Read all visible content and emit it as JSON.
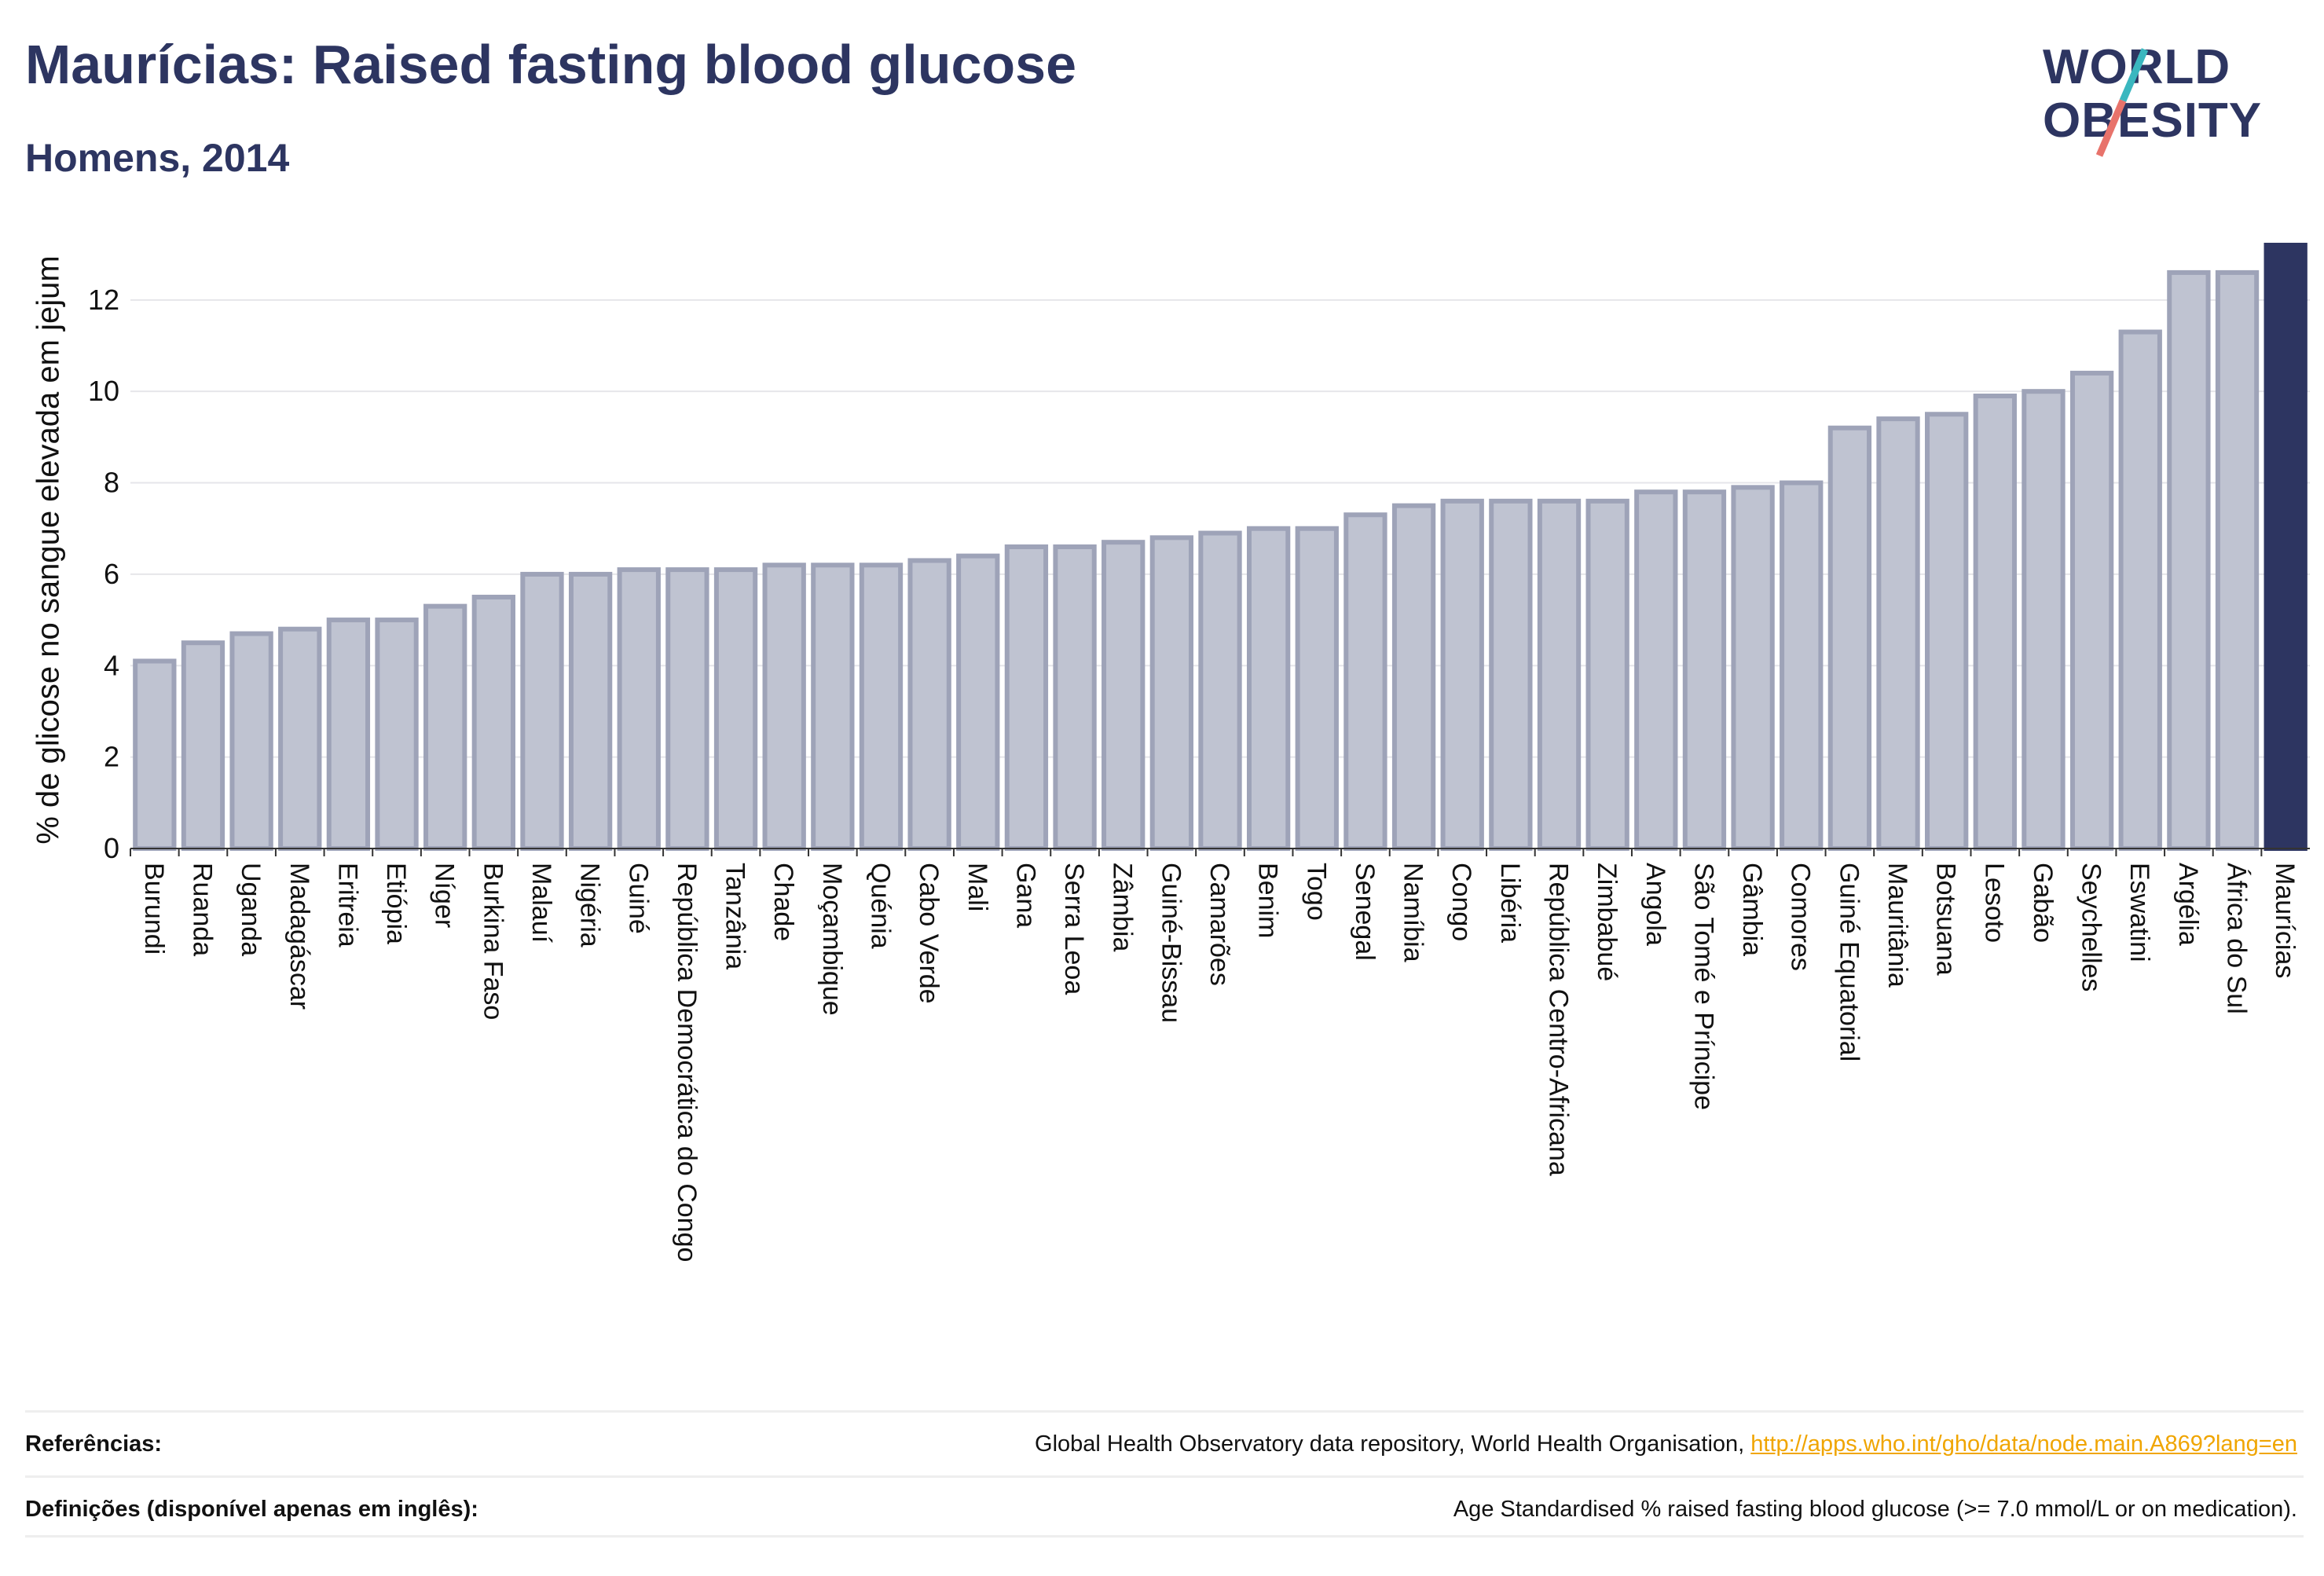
{
  "header": {
    "title": "Maurícias: Raised fasting blood glucose",
    "subtitle": "Homens, 2014"
  },
  "logo": {
    "line1": "WORLD",
    "line2": "OBESITY",
    "accent_color": "#3ab7bf",
    "accent_color_2": "#e8736b"
  },
  "chart_data": {
    "type": "bar",
    "ylabel": "% de glicose no sangue elevada em jejum",
    "xlabel": "",
    "ylim": [
      0,
      13.2
    ],
    "yticks": [
      0,
      2,
      4,
      6,
      8,
      10,
      12
    ],
    "grid": true,
    "highlight": "Maurícias",
    "colors": {
      "bar": "#bfc3d1",
      "bar_edge": "#9ea3b8",
      "highlight": "#2d3561"
    },
    "categories": [
      "Burundi",
      "Ruanda",
      "Uganda",
      "Madagáscar",
      "Eritreia",
      "Etiópia",
      "Níger",
      "Burkina Faso",
      "Malauí",
      "Nigéria",
      "Guiné",
      "República Democrática do Congo",
      "Tanzânia",
      "Chade",
      "Moçambique",
      "Quénia",
      "Cabo Verde",
      "Mali",
      "Gana",
      "Serra Leoa",
      "Zâmbia",
      "Guiné-Bissau",
      "Camarões",
      "Benim",
      "Togo",
      "Senegal",
      "Namíbia",
      "Congo",
      "Libéria",
      "República Centro-Africana",
      "Zimbabué",
      "Angola",
      "São Tomé e Príncipe",
      "Gâmbia",
      "Comores",
      "Guiné Equatorial",
      "Mauritânia",
      "Botsuana",
      "Lesoto",
      "Gabão",
      "Seychelles",
      "Eswatini",
      "Argélia",
      "África do Sul",
      "Maurícias"
    ],
    "values": [
      4.1,
      4.5,
      4.7,
      4.8,
      5.0,
      5.0,
      5.3,
      5.5,
      6.0,
      6.0,
      6.1,
      6.1,
      6.1,
      6.2,
      6.2,
      6.2,
      6.3,
      6.4,
      6.6,
      6.6,
      6.7,
      6.8,
      6.9,
      7.0,
      7.0,
      7.3,
      7.5,
      7.6,
      7.6,
      7.6,
      7.6,
      7.8,
      7.8,
      7.9,
      8.0,
      9.2,
      9.4,
      9.5,
      9.9,
      10.0,
      10.4,
      11.3,
      12.6,
      12.6,
      13.2
    ]
  },
  "footer": {
    "references_label": "Referências:",
    "references_text": "Global Health Observatory data repository, World Health Organisation, ",
    "references_link": "http://apps.who.int/gho/data/node.main.A869?lang=en",
    "definitions_label": "Definições (disponível apenas em inglês):",
    "definitions_text": "Age Standardised % raised fasting blood glucose (>= 7.0 mmol/L or on medication)."
  }
}
